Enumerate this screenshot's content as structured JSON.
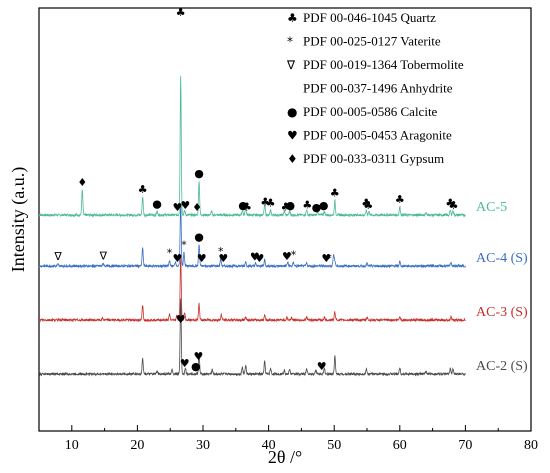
{
  "chart_data": {
    "type": "line",
    "xlabel": "2θ /°",
    "ylabel": "Intensity (a.u.)",
    "xlim": [
      5,
      80
    ],
    "x_ticks": [
      10,
      20,
      30,
      40,
      50,
      60,
      70,
      80
    ],
    "y_tick_labels": "none",
    "grid": false,
    "legend": {
      "placement": "top-right",
      "entries": [
        {
          "symbol": "♣",
          "label": "PDF 00-046-1045 Quartz"
        },
        {
          "symbol": "*",
          "label": "PDF 00-025-0127 Vaterite"
        },
        {
          "symbol": "∇",
          "label": "PDF 00-019-1364 Tobermolite"
        },
        {
          "symbol": "",
          "label": "PDF 00-037-1496 Anhydrite"
        },
        {
          "symbol": "●",
          "label": "PDF 00-005-0586 Calcite"
        },
        {
          "symbol": "♥",
          "label": "PDF 00-005-0453 Aragonite"
        },
        {
          "symbol": "♦",
          "label": "PDF 00-033-0311 Gypsum"
        }
      ]
    },
    "series": [
      {
        "name": "AC-5",
        "color": "#4dbb91",
        "baseline": 0.0,
        "offset": 3,
        "peaks": [
          [
            11.6,
            0.28
          ],
          [
            20.8,
            0.2
          ],
          [
            23.0,
            0.04
          ],
          [
            26.6,
            1.55
          ],
          [
            27.2,
            0.05
          ],
          [
            29.4,
            0.38
          ],
          [
            31.3,
            0.04
          ],
          [
            36.0,
            0.05
          ],
          [
            36.5,
            0.08
          ],
          [
            39.4,
            0.12
          ],
          [
            40.3,
            0.05
          ],
          [
            42.4,
            0.05
          ],
          [
            43.2,
            0.05
          ],
          [
            45.8,
            0.06
          ],
          [
            47.5,
            0.04
          ],
          [
            48.5,
            0.04
          ],
          [
            50.1,
            0.16
          ],
          [
            54.9,
            0.05
          ],
          [
            55.3,
            0.04
          ],
          [
            60.0,
            0.09
          ],
          [
            64.0,
            0.03
          ],
          [
            67.7,
            0.05
          ],
          [
            68.1,
            0.05
          ]
        ]
      },
      {
        "name": "AC-4 (S)",
        "color": "#3a6fc4",
        "baseline": 0.0,
        "offset": 2,
        "peaks": [
          [
            7.9,
            0.02
          ],
          [
            14.8,
            0.03
          ],
          [
            20.8,
            0.2
          ],
          [
            24.9,
            0.06
          ],
          [
            25.8,
            0.05
          ],
          [
            26.6,
            0.7
          ],
          [
            27.1,
            0.15
          ],
          [
            29.4,
            0.24
          ],
          [
            32.7,
            0.08
          ],
          [
            36.5,
            0.05
          ],
          [
            38.0,
            0.03
          ],
          [
            39.4,
            0.07
          ],
          [
            42.9,
            0.04
          ],
          [
            43.8,
            0.04
          ],
          [
            45.8,
            0.03
          ],
          [
            49.9,
            0.12
          ],
          [
            50.1,
            0.06
          ],
          [
            55.0,
            0.03
          ],
          [
            60.0,
            0.05
          ],
          [
            67.8,
            0.04
          ]
        ]
      },
      {
        "name": "AC-3 (S)",
        "color": "#c9302c",
        "baseline": 0.0,
        "offset": 1,
        "peaks": [
          [
            8.0,
            0.01
          ],
          [
            14.7,
            0.02
          ],
          [
            20.8,
            0.16
          ],
          [
            24.9,
            0.06
          ],
          [
            26.0,
            0.05
          ],
          [
            26.6,
            0.7
          ],
          [
            27.2,
            0.08
          ],
          [
            29.4,
            0.18
          ],
          [
            32.8,
            0.06
          ],
          [
            36.5,
            0.04
          ],
          [
            39.4,
            0.06
          ],
          [
            42.8,
            0.03
          ],
          [
            43.5,
            0.03
          ],
          [
            45.8,
            0.03
          ],
          [
            48.5,
            0.03
          ],
          [
            50.1,
            0.09
          ],
          [
            55.0,
            0.03
          ],
          [
            60.0,
            0.04
          ],
          [
            67.8,
            0.03
          ]
        ]
      },
      {
        "name": "AC-2 (S)",
        "color": "#4a4a4a",
        "baseline": 0.0,
        "offset": 0,
        "peaks": [
          [
            20.8,
            0.18
          ],
          [
            23.0,
            0.03
          ],
          [
            25.3,
            0.05
          ],
          [
            26.6,
            0.85
          ],
          [
            27.3,
            0.07
          ],
          [
            29.4,
            0.22
          ],
          [
            31.4,
            0.05
          ],
          [
            36.0,
            0.08
          ],
          [
            36.5,
            0.1
          ],
          [
            39.4,
            0.14
          ],
          [
            40.3,
            0.06
          ],
          [
            42.4,
            0.05
          ],
          [
            43.2,
            0.05
          ],
          [
            45.8,
            0.06
          ],
          [
            47.2,
            0.05
          ],
          [
            48.5,
            0.06
          ],
          [
            50.1,
            0.2
          ],
          [
            54.9,
            0.05
          ],
          [
            60.0,
            0.07
          ],
          [
            64.0,
            0.03
          ],
          [
            67.7,
            0.06
          ],
          [
            68.1,
            0.05
          ]
        ]
      }
    ],
    "annotations": [
      {
        "series": "AC-5",
        "x": 26.6,
        "symbol": "♣"
      },
      {
        "series": "AC-5",
        "x": 11.6,
        "symbol": "♦"
      },
      {
        "series": "AC-5",
        "x": 20.8,
        "symbol": "♣"
      },
      {
        "series": "AC-5",
        "x": 23.0,
        "symbol": "●"
      },
      {
        "series": "AC-5",
        "x": 26.1,
        "symbol": "♥"
      },
      {
        "series": "AC-5",
        "x": 27.3,
        "symbol": "♥"
      },
      {
        "series": "AC-5",
        "x": 29.1,
        "symbol": "♦"
      },
      {
        "series": "AC-5",
        "x": 29.4,
        "symbol": "●"
      },
      {
        "series": "AC-5",
        "x": 36.1,
        "symbol": "●"
      },
      {
        "series": "AC-5",
        "x": 36.7,
        "symbol": "♣"
      },
      {
        "series": "AC-5",
        "x": 39.5,
        "symbol": "♣"
      },
      {
        "series": "AC-5",
        "x": 40.3,
        "symbol": "♣"
      },
      {
        "series": "AC-5",
        "x": 42.6,
        "symbol": "♣"
      },
      {
        "series": "AC-5",
        "x": 43.3,
        "symbol": "●"
      },
      {
        "series": "AC-5",
        "x": 45.9,
        "symbol": "♣"
      },
      {
        "series": "AC-5",
        "x": 47.3,
        "symbol": "●"
      },
      {
        "series": "AC-5",
        "x": 48.4,
        "symbol": "●"
      },
      {
        "series": "AC-5",
        "x": 50.1,
        "symbol": "♣"
      },
      {
        "series": "AC-5",
        "x": 54.9,
        "symbol": "♣"
      },
      {
        "series": "AC-5",
        "x": 55.2,
        "symbol": "♣"
      },
      {
        "series": "AC-5",
        "x": 60.0,
        "symbol": "♣"
      },
      {
        "series": "AC-5",
        "x": 67.7,
        "symbol": "♣"
      },
      {
        "series": "AC-5",
        "x": 68.2,
        "symbol": "♣"
      },
      {
        "series": "AC-4 (S)",
        "x": 7.9,
        "symbol": "∇"
      },
      {
        "series": "AC-4 (S)",
        "x": 14.8,
        "symbol": "∇"
      },
      {
        "series": "AC-4 (S)",
        "x": 24.9,
        "symbol": "*"
      },
      {
        "series": "AC-4 (S)",
        "x": 26.1,
        "symbol": "♥"
      },
      {
        "series": "AC-4 (S)",
        "x": 27.1,
        "symbol": "*"
      },
      {
        "series": "AC-4 (S)",
        "x": 29.4,
        "symbol": "●"
      },
      {
        "series": "AC-4 (S)",
        "x": 29.8,
        "symbol": "♥"
      },
      {
        "series": "AC-4 (S)",
        "x": 32.7,
        "symbol": "*"
      },
      {
        "series": "AC-4 (S)",
        "x": 33.1,
        "symbol": "♥"
      },
      {
        "series": "AC-4 (S)",
        "x": 37.9,
        "symbol": "♥"
      },
      {
        "series": "AC-4 (S)",
        "x": 38.6,
        "symbol": "♥"
      },
      {
        "series": "AC-4 (S)",
        "x": 42.8,
        "symbol": "♥"
      },
      {
        "series": "AC-4 (S)",
        "x": 43.8,
        "symbol": "*"
      },
      {
        "series": "AC-4 (S)",
        "x": 48.8,
        "symbol": "♥"
      },
      {
        "series": "AC-4 (S)",
        "x": 49.2,
        "symbol": "*"
      },
      {
        "series": "AC-2 (S)",
        "x": 26.6,
        "symbol": "♥"
      },
      {
        "series": "AC-2 (S)",
        "x": 29.3,
        "symbol": "♥"
      },
      {
        "series": "AC-2 (S)",
        "x": 28.9,
        "symbol": "●"
      },
      {
        "series": "AC-2 (S)",
        "x": 27.2,
        "symbol": "♥"
      },
      {
        "series": "AC-2 (S)",
        "x": 48.1,
        "symbol": "♥"
      }
    ]
  }
}
